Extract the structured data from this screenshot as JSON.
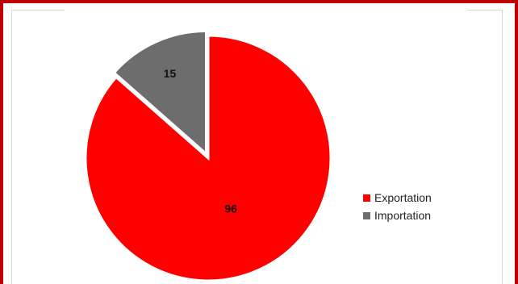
{
  "chart_data": {
    "type": "pie",
    "title": "",
    "slices": [
      {
        "label": "Exportation",
        "value": 96,
        "color": "#ff0000"
      },
      {
        "label": "Importation",
        "value": 15,
        "color": "#6d6d6d"
      }
    ],
    "exploded": [
      "Importation"
    ],
    "data_labels": true,
    "legend_position": "right"
  },
  "legend": {
    "items": [
      {
        "label": "Exportation",
        "color": "#ff0000"
      },
      {
        "label": "Importation",
        "color": "#6d6d6d"
      }
    ]
  },
  "frame": {
    "border_color": "#c00000"
  }
}
